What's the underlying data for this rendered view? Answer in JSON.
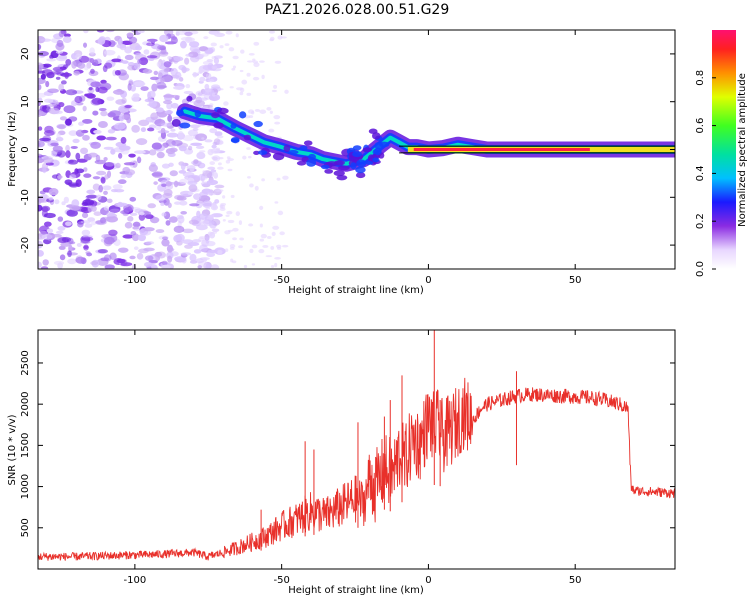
{
  "title": "PAZ1.2026.028.00.51.G29",
  "chart_data": [
    {
      "type": "heatmap",
      "name": "spectrogram",
      "xlabel": "Height of straight line (km)",
      "ylabel": "Frequency (Hz)",
      "xlim": [
        -133,
        84
      ],
      "ylim": [
        -25,
        25
      ],
      "xticks": [
        -100,
        -50,
        0,
        50
      ],
      "xtick_labels": [
        "-100",
        "-50",
        "0",
        "50"
      ],
      "yticks": [
        20,
        10,
        0,
        -10,
        -20
      ],
      "ytick_labels": [
        "20",
        "10",
        "0",
        "-10",
        "-20"
      ],
      "signal_trace": {
        "x": [
          -83,
          -78,
          -72,
          -66,
          -61,
          -56,
          -50,
          -45,
          -40,
          -36,
          -32,
          -28,
          -25,
          -22,
          -19,
          -16,
          -13,
          -10,
          -7,
          -4,
          0,
          5,
          10,
          15,
          20,
          30,
          40,
          50,
          60,
          70,
          80,
          84
        ],
        "y": [
          8,
          7,
          6.5,
          4.5,
          3,
          1.5,
          0.5,
          -0.5,
          -1,
          -2,
          -2.5,
          -3,
          -2.5,
          -2,
          -0.5,
          1,
          2.5,
          1.5,
          0.5,
          0.5,
          0,
          0.3,
          1,
          0.5,
          0,
          0,
          0,
          0,
          0,
          0,
          0,
          0
        ]
      },
      "colorbar": {
        "label": "Normalized spectral amplitude",
        "range": [
          0,
          1
        ],
        "ticks": [
          0.0,
          0.2,
          0.4,
          0.6,
          0.8
        ],
        "tick_labels": [
          "0.0",
          "0.2",
          "0.4",
          "0.6",
          "0.8"
        ]
      }
    },
    {
      "type": "line",
      "name": "snr",
      "xlabel": "Height of straight line (km)",
      "ylabel": "SNR (10 * v/v)",
      "xlim": [
        -133,
        84
      ],
      "ylim": [
        0,
        2900
      ],
      "xticks": [
        -100,
        -50,
        0,
        50
      ],
      "xtick_labels": [
        "-100",
        "-50",
        "0",
        "50"
      ],
      "yticks": [
        500,
        1000,
        1500,
        2000,
        2500
      ],
      "ytick_labels": [
        "500",
        "1000",
        "1500",
        "2000",
        "2500"
      ],
      "color": "#e8302a",
      "series": [
        {
          "name": "SNR",
          "x": [
            -133,
            -120,
            -110,
            -100,
            -90,
            -80,
            -75,
            -70,
            -65,
            -60,
            -55,
            -50,
            -45,
            -40,
            -35,
            -30,
            -25,
            -22,
            -20,
            -18,
            -15,
            -12,
            -10,
            -8,
            -5,
            -3,
            0,
            2,
            3,
            5,
            8,
            10,
            12,
            15,
            18,
            20,
            25,
            30,
            35,
            40,
            45,
            50,
            55,
            60,
            65,
            68,
            69,
            70,
            75,
            80,
            84
          ],
          "values": [
            150,
            150,
            160,
            170,
            180,
            200,
            150,
            200,
            260,
            330,
            400,
            520,
            600,
            700,
            650,
            750,
            850,
            800,
            1100,
            1000,
            1200,
            1150,
            1400,
            1300,
            1600,
            1500,
            1800,
            1700,
            1750,
            1600,
            1700,
            1800,
            1900,
            1800,
            1950,
            2000,
            2050,
            2100,
            2120,
            2110,
            2100,
            2090,
            2080,
            2050,
            2000,
            1950,
            1000,
            950,
            940,
            930,
            920
          ]
        }
      ],
      "spikes": [
        {
          "x": -57,
          "y": 720
        },
        {
          "x": -42,
          "y": 1550
        },
        {
          "x": -39,
          "y": 1450
        },
        {
          "x": -24,
          "y": 1780
        },
        {
          "x": -15,
          "y": 1850
        },
        {
          "x": -13,
          "y": 2050
        },
        {
          "x": -9,
          "y": 2350
        },
        {
          "x": 2,
          "y": 2900
        },
        {
          "x": 4,
          "y": 2050
        },
        {
          "x": 30,
          "y": 2400
        }
      ]
    }
  ]
}
